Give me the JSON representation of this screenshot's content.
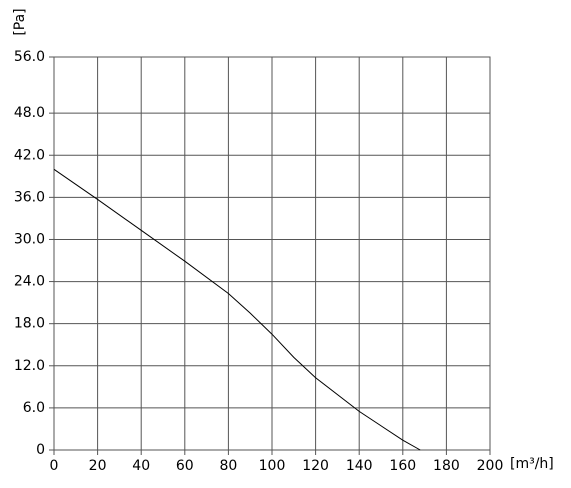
{
  "chart_data": {
    "type": "line",
    "x_label": "[m³/h]",
    "y_label": "[Pa]",
    "x": [
      0,
      20,
      40,
      60,
      80,
      90,
      100,
      110,
      120,
      140,
      160,
      168
    ],
    "series": [
      {
        "color": "#000000",
        "values": [
          40,
          35.7,
          31.3,
          26.9,
          22.3,
          19.5,
          16.5,
          13.2,
          10.3,
          5.5,
          1.4,
          0
        ]
      }
    ],
    "xlim": [
      0,
      200
    ],
    "xticks": [
      0,
      20,
      40,
      60,
      80,
      100,
      120,
      140,
      160,
      180,
      200
    ],
    "ylim": [
      0,
      56
    ],
    "yticks": [
      0,
      {
        "value": 6,
        "label": "6.0"
      },
      {
        "value": 12,
        "label": "12.0"
      },
      {
        "value": 18,
        "label": "18.0"
      },
      {
        "value": 24,
        "label": "24.0"
      },
      {
        "value": 30,
        "label": "30.0"
      },
      {
        "value": 36,
        "label": "36.0"
      },
      {
        "value": 42,
        "label": "42.0"
      },
      {
        "value": 48,
        "label": "48.0"
      },
      {
        "value": 56,
        "label": "56.0"
      }
    ],
    "grid": true
  }
}
